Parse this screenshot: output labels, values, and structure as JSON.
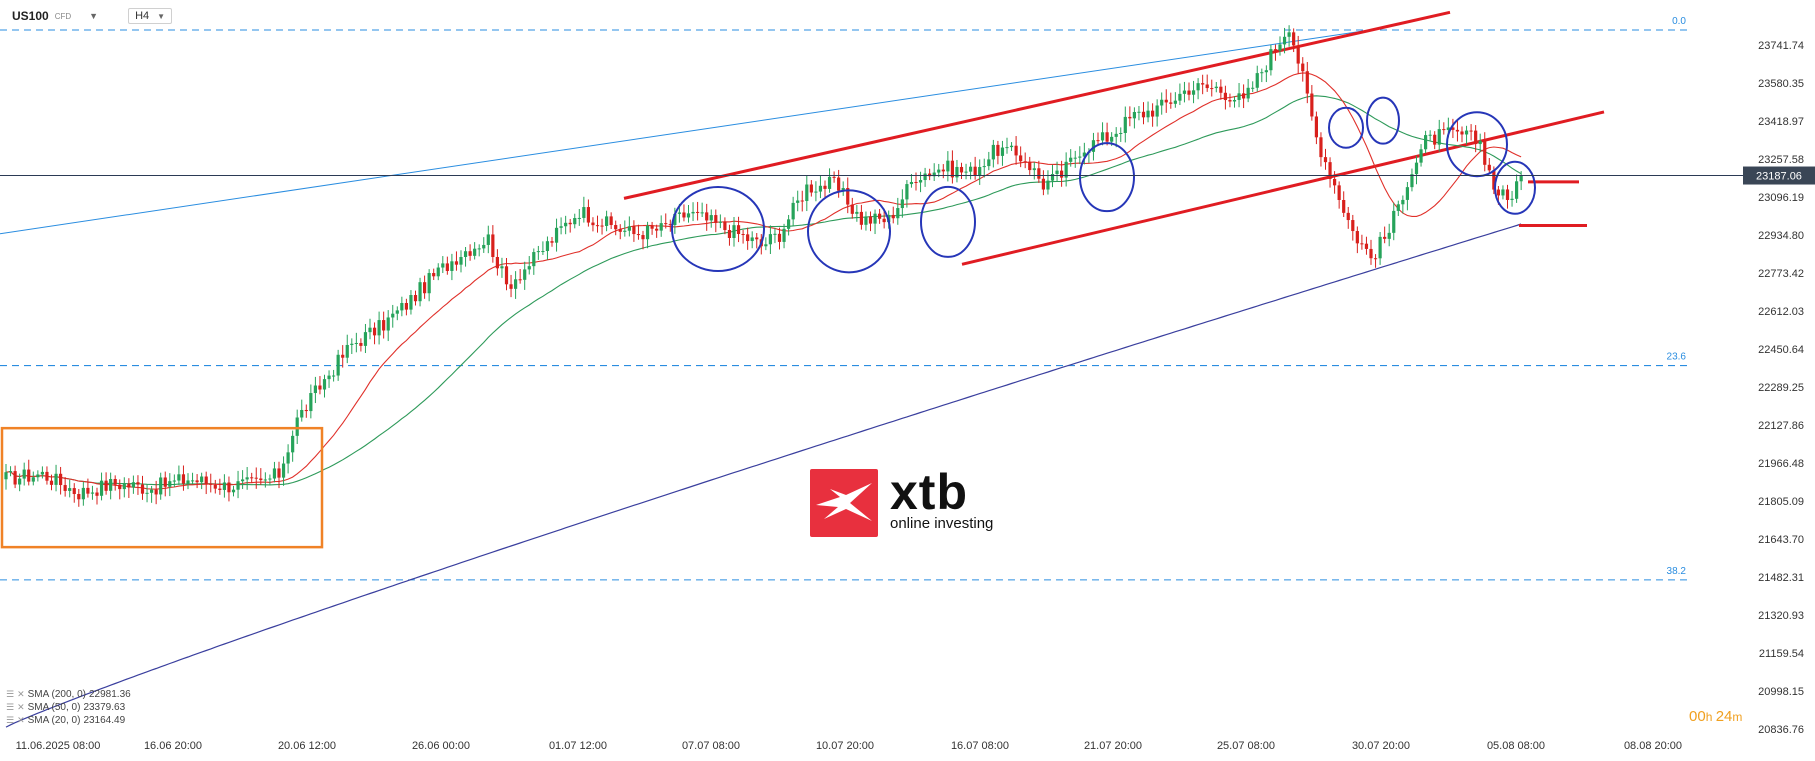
{
  "toolbar": {
    "symbol": "US100",
    "symbol_type": "CFD",
    "timeframe": "H4"
  },
  "logo": {
    "brand": "xtb",
    "tagline": "online investing"
  },
  "legend": [
    {
      "label": "SMA (200, 0)",
      "value": "22981.36",
      "color": "#3a3f9e"
    },
    {
      "label": "SMA (50, 0)",
      "value": "23379.63",
      "color": "#2e9a5a"
    },
    {
      "label": "SMA (20, 0)",
      "value": "23164.49",
      "color": "#e0302a"
    }
  ],
  "timer": {
    "hours": "00",
    "minutes": "24"
  },
  "colors": {
    "up": "#26a35a",
    "down": "#d8201c",
    "fib": "#2a8de0",
    "channel": "#e01c22",
    "circle": "#2636b8",
    "box": "#f08226",
    "price_line": "#2b3a55"
  },
  "chart_data": {
    "type": "candlestick",
    "symbol": "US100",
    "timeframe": "H4",
    "ylim": [
      20770,
      23860
    ],
    "y_ticks": [
      "23741.74",
      "23580.35",
      "23418.97",
      "23257.58",
      "23096.19",
      "22934.80",
      "22773.42",
      "22612.03",
      "22450.64",
      "22289.25",
      "22127.86",
      "21966.48",
      "21805.09",
      "21643.70",
      "21482.31",
      "21320.93",
      "21159.54",
      "20998.15",
      "20836.76"
    ],
    "x_ticks": [
      "11.06.2025 08:00",
      "16.06 20:00",
      "20.06 12:00",
      "26.06 00:00",
      "01.07 12:00",
      "07.07 08:00",
      "10.07 20:00",
      "16.07 08:00",
      "21.07 20:00",
      "25.07 08:00",
      "30.07 20:00",
      "05.08 08:00",
      "08.08 20:00"
    ],
    "current_price": "23187.06",
    "current_price_value": 23187.06,
    "fibonacci": [
      {
        "label": "0.0",
        "value": 23805
      },
      {
        "label": "23.6",
        "value": 22380
      },
      {
        "label": "38.2",
        "value": 21470
      }
    ],
    "anchors": [
      [
        0,
        21900
      ],
      [
        8,
        21920
      ],
      [
        16,
        21840
      ],
      [
        24,
        21880
      ],
      [
        32,
        21860
      ],
      [
        40,
        21900
      ],
      [
        48,
        21870
      ],
      [
        56,
        21880
      ],
      [
        60,
        21920
      ],
      [
        64,
        22150
      ],
      [
        70,
        22320
      ],
      [
        76,
        22470
      ],
      [
        82,
        22540
      ],
      [
        88,
        22640
      ],
      [
        94,
        22760
      ],
      [
        100,
        22860
      ],
      [
        106,
        22920
      ],
      [
        110,
        22720
      ],
      [
        116,
        22830
      ],
      [
        122,
        22960
      ],
      [
        126,
        23040
      ],
      [
        132,
        22980
      ],
      [
        138,
        22940
      ],
      [
        144,
        22960
      ],
      [
        150,
        23030
      ],
      [
        156,
        22980
      ],
      [
        162,
        22930
      ],
      [
        166,
        22890
      ],
      [
        170,
        22940
      ],
      [
        176,
        23140
      ],
      [
        182,
        23150
      ],
      [
        188,
        23000
      ],
      [
        194,
        23000
      ],
      [
        200,
        23190
      ],
      [
        206,
        23220
      ],
      [
        212,
        23200
      ],
      [
        218,
        23300
      ],
      [
        224,
        23260
      ],
      [
        228,
        23150
      ],
      [
        232,
        23190
      ],
      [
        236,
        23300
      ],
      [
        242,
        23350
      ],
      [
        248,
        23440
      ],
      [
        254,
        23480
      ],
      [
        260,
        23560
      ],
      [
        266,
        23560
      ],
      [
        272,
        23500
      ],
      [
        278,
        23700
      ],
      [
        282,
        23830
      ],
      [
        285,
        23600
      ],
      [
        288,
        23350
      ],
      [
        292,
        23150
      ],
      [
        296,
        22950
      ],
      [
        300,
        22840
      ],
      [
        304,
        22950
      ],
      [
        308,
        23170
      ],
      [
        312,
        23330
      ],
      [
        316,
        23360
      ],
      [
        320,
        23360
      ],
      [
        324,
        23330
      ],
      [
        327,
        23140
      ],
      [
        330,
        23080
      ],
      [
        333,
        23190
      ]
    ]
  }
}
